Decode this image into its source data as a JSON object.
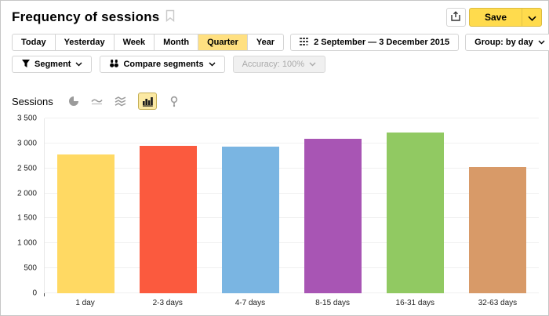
{
  "header": {
    "title": "Frequency of sessions",
    "save_label": "Save",
    "icons": {
      "bookmark": "bookmark-icon",
      "export": "export-icon",
      "save_caret": "chevron-down-icon"
    }
  },
  "toolbar": {
    "periods": [
      "Today",
      "Yesterday",
      "Week",
      "Month",
      "Quarter",
      "Year"
    ],
    "selected_period": "Quarter",
    "date_range": "2 September — 3 December 2015",
    "group_label": "Group: by day",
    "segment_label": "Segment",
    "compare_label": "Compare segments",
    "accuracy_label": "Accuracy: 100%",
    "icons": {
      "date": "calendar-grid-icon",
      "segment": "funnel-icon",
      "compare": "binoculars-icon"
    }
  },
  "metric": {
    "label": "Sessions",
    "icons": [
      "pie-chart-icon",
      "line-chart-icon",
      "stacked-area-icon",
      "bar-chart-icon",
      "map-pin-icon"
    ],
    "selected_icon": "bar-chart-icon"
  },
  "chart_data": {
    "type": "bar",
    "categories": [
      "1 day",
      "2-3 days",
      "4-7 days",
      "8-15 days",
      "16-31 days",
      "32-63 days"
    ],
    "values": [
      2780,
      2950,
      2930,
      3090,
      3220,
      2530
    ],
    "colors": [
      "#ffd963",
      "#fb5a3e",
      "#7ab5e2",
      "#a855b4",
      "#91c962",
      "#d89a68"
    ],
    "title": "Frequency of sessions",
    "xlabel": "",
    "ylabel": "Sessions",
    "ylim": [
      0,
      3500
    ],
    "yticks": [
      {
        "value": 3500,
        "label": "3 500"
      },
      {
        "value": 3000,
        "label": "3 000"
      },
      {
        "value": 2500,
        "label": "2 500"
      },
      {
        "value": 2000,
        "label": "2 000"
      },
      {
        "value": 1500,
        "label": "1 500"
      },
      {
        "value": 1000,
        "label": "1 000"
      },
      {
        "value": 500,
        "label": "500"
      },
      {
        "value": 0,
        "label": "0"
      }
    ],
    "grid": "horizontal",
    "legend": "none"
  },
  "colors": {
    "accent_yellow": "#ffdb4d",
    "selected_period_bg": "#ffe081",
    "selected_icon_bg": "#fbe9a3",
    "button_border": "#d4d4d4",
    "gridline": "#f0f0f0"
  }
}
